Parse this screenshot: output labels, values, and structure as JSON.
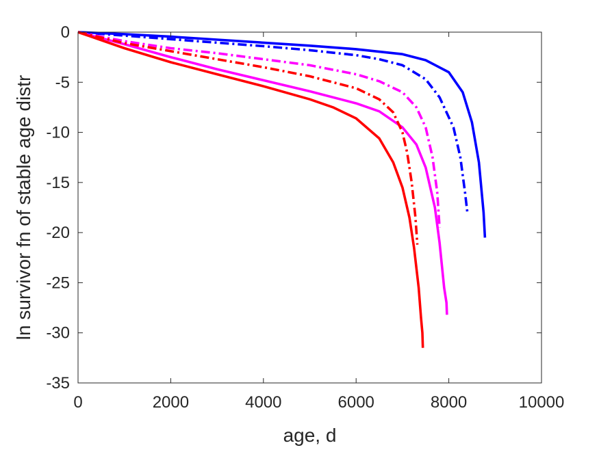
{
  "chart_data": {
    "type": "line",
    "xlabel": "age, d",
    "ylabel": "ln survivor fn of stable age distr",
    "xlim": [
      0,
      10000
    ],
    "ylim": [
      -35,
      0
    ],
    "xticks": [
      0,
      2000,
      4000,
      6000,
      8000,
      10000
    ],
    "yticks": [
      0,
      -5,
      -10,
      -15,
      -20,
      -25,
      -30,
      -35
    ],
    "xtick_labels": [
      "0",
      "2000",
      "4000",
      "6000",
      "8000",
      "10000"
    ],
    "ytick_labels": [
      "0",
      "-5",
      "-10",
      "-15",
      "-20",
      "-25",
      "-30",
      "-35"
    ],
    "grid": false,
    "box": true,
    "series": [
      {
        "color": "#0000ff",
        "style": "solid",
        "x": [
          0,
          1000,
          2000,
          3000,
          4000,
          5000,
          6000,
          7000,
          7500,
          8000,
          8300,
          8500,
          8650,
          8750,
          8780
        ],
        "y": [
          0,
          -0.2,
          -0.45,
          -0.75,
          -1.05,
          -1.35,
          -1.7,
          -2.2,
          -2.8,
          -4.0,
          -6.0,
          -9.0,
          -13.0,
          -18.0,
          -20.5
        ]
      },
      {
        "color": "#0000ff",
        "style": "dashdot",
        "x": [
          0,
          1000,
          2000,
          3000,
          4000,
          5000,
          6000,
          6500,
          7000,
          7500,
          7800,
          8100,
          8250,
          8350,
          8400
        ],
        "y": [
          0,
          -0.35,
          -0.7,
          -1.05,
          -1.4,
          -1.8,
          -2.3,
          -2.7,
          -3.3,
          -4.7,
          -6.5,
          -9.5,
          -12.5,
          -16.0,
          -18.0
        ]
      },
      {
        "color": "#ff00ff",
        "style": "solid",
        "x": [
          0,
          1000,
          2000,
          3000,
          4000,
          5000,
          6000,
          6500,
          7000,
          7300,
          7500,
          7700,
          7800,
          7900,
          7950,
          7960
        ],
        "y": [
          0,
          -1.2,
          -2.5,
          -3.7,
          -4.8,
          -5.9,
          -7.1,
          -7.9,
          -9.5,
          -11.2,
          -13.5,
          -17.5,
          -21.0,
          -25.5,
          -27.0,
          -28.2
        ]
      },
      {
        "color": "#ff00ff",
        "style": "dashdot",
        "x": [
          0,
          1000,
          2000,
          3000,
          4000,
          5000,
          6000,
          6500,
          7000,
          7300,
          7500,
          7650,
          7750,
          7800
        ],
        "y": [
          0,
          -0.9,
          -1.6,
          -2.1,
          -2.7,
          -3.3,
          -4.2,
          -4.9,
          -6.0,
          -7.5,
          -9.5,
          -12.5,
          -16.0,
          -19.5
        ]
      },
      {
        "color": "#ff0000",
        "style": "solid",
        "x": [
          0,
          1000,
          2000,
          3000,
          4000,
          5000,
          5500,
          6000,
          6500,
          6800,
          7000,
          7150,
          7250,
          7350,
          7400,
          7430,
          7440
        ],
        "y": [
          0,
          -1.6,
          -3.0,
          -4.2,
          -5.4,
          -6.7,
          -7.5,
          -8.6,
          -10.6,
          -13.0,
          -15.5,
          -18.5,
          -21.5,
          -25.5,
          -28.5,
          -30.0,
          -31.5
        ]
      },
      {
        "color": "#ff0000",
        "style": "dashdot",
        "x": [
          0,
          1000,
          2000,
          3000,
          4000,
          5000,
          6000,
          6500,
          6800,
          7000,
          7100,
          7200,
          7280,
          7320
        ],
        "y": [
          0,
          -1.1,
          -1.9,
          -2.7,
          -3.5,
          -4.4,
          -5.6,
          -6.7,
          -8.0,
          -10.0,
          -12.0,
          -15.0,
          -18.5,
          -21.2
        ]
      }
    ]
  }
}
